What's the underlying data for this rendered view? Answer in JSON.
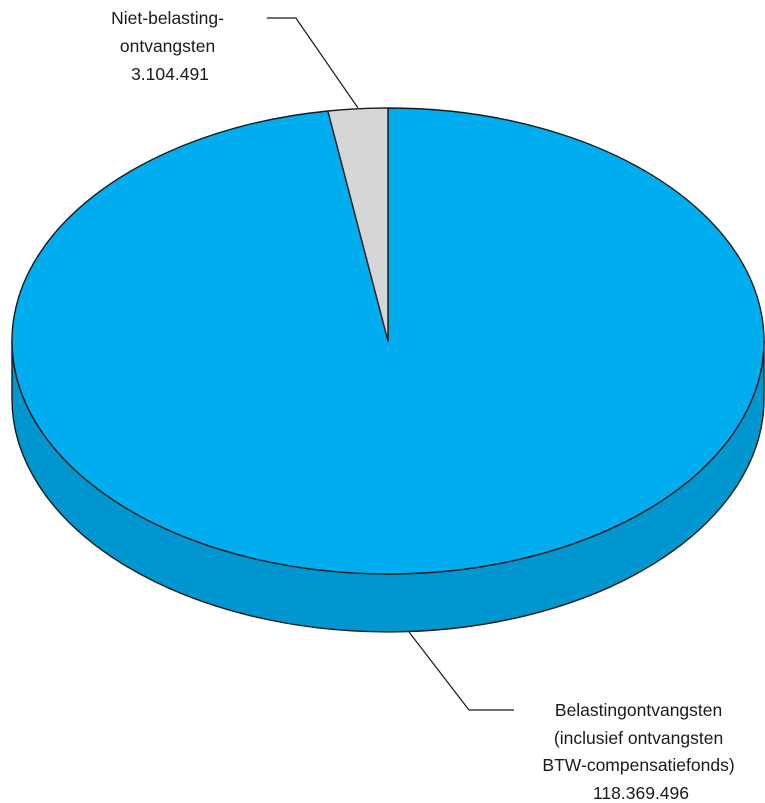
{
  "chart_data": {
    "type": "pie",
    "style": "3d",
    "title": "",
    "slices": [
      {
        "label_lines": [
          "Belastingontvangsten",
          "(inclusief ontvangsten",
          "BTW-compensatiefonds)"
        ],
        "value": 118369496,
        "value_text": "118.369.496",
        "color": "#00aeef",
        "side_color": "#0096cf"
      },
      {
        "label_lines": [
          "Niet-belasting-",
          "ontvangsten"
        ],
        "value": 3104491,
        "value_text": "3.104.491",
        "color": "#d4d6d8",
        "side_color": "#b8babc"
      }
    ],
    "legend": "none",
    "grid": false
  }
}
